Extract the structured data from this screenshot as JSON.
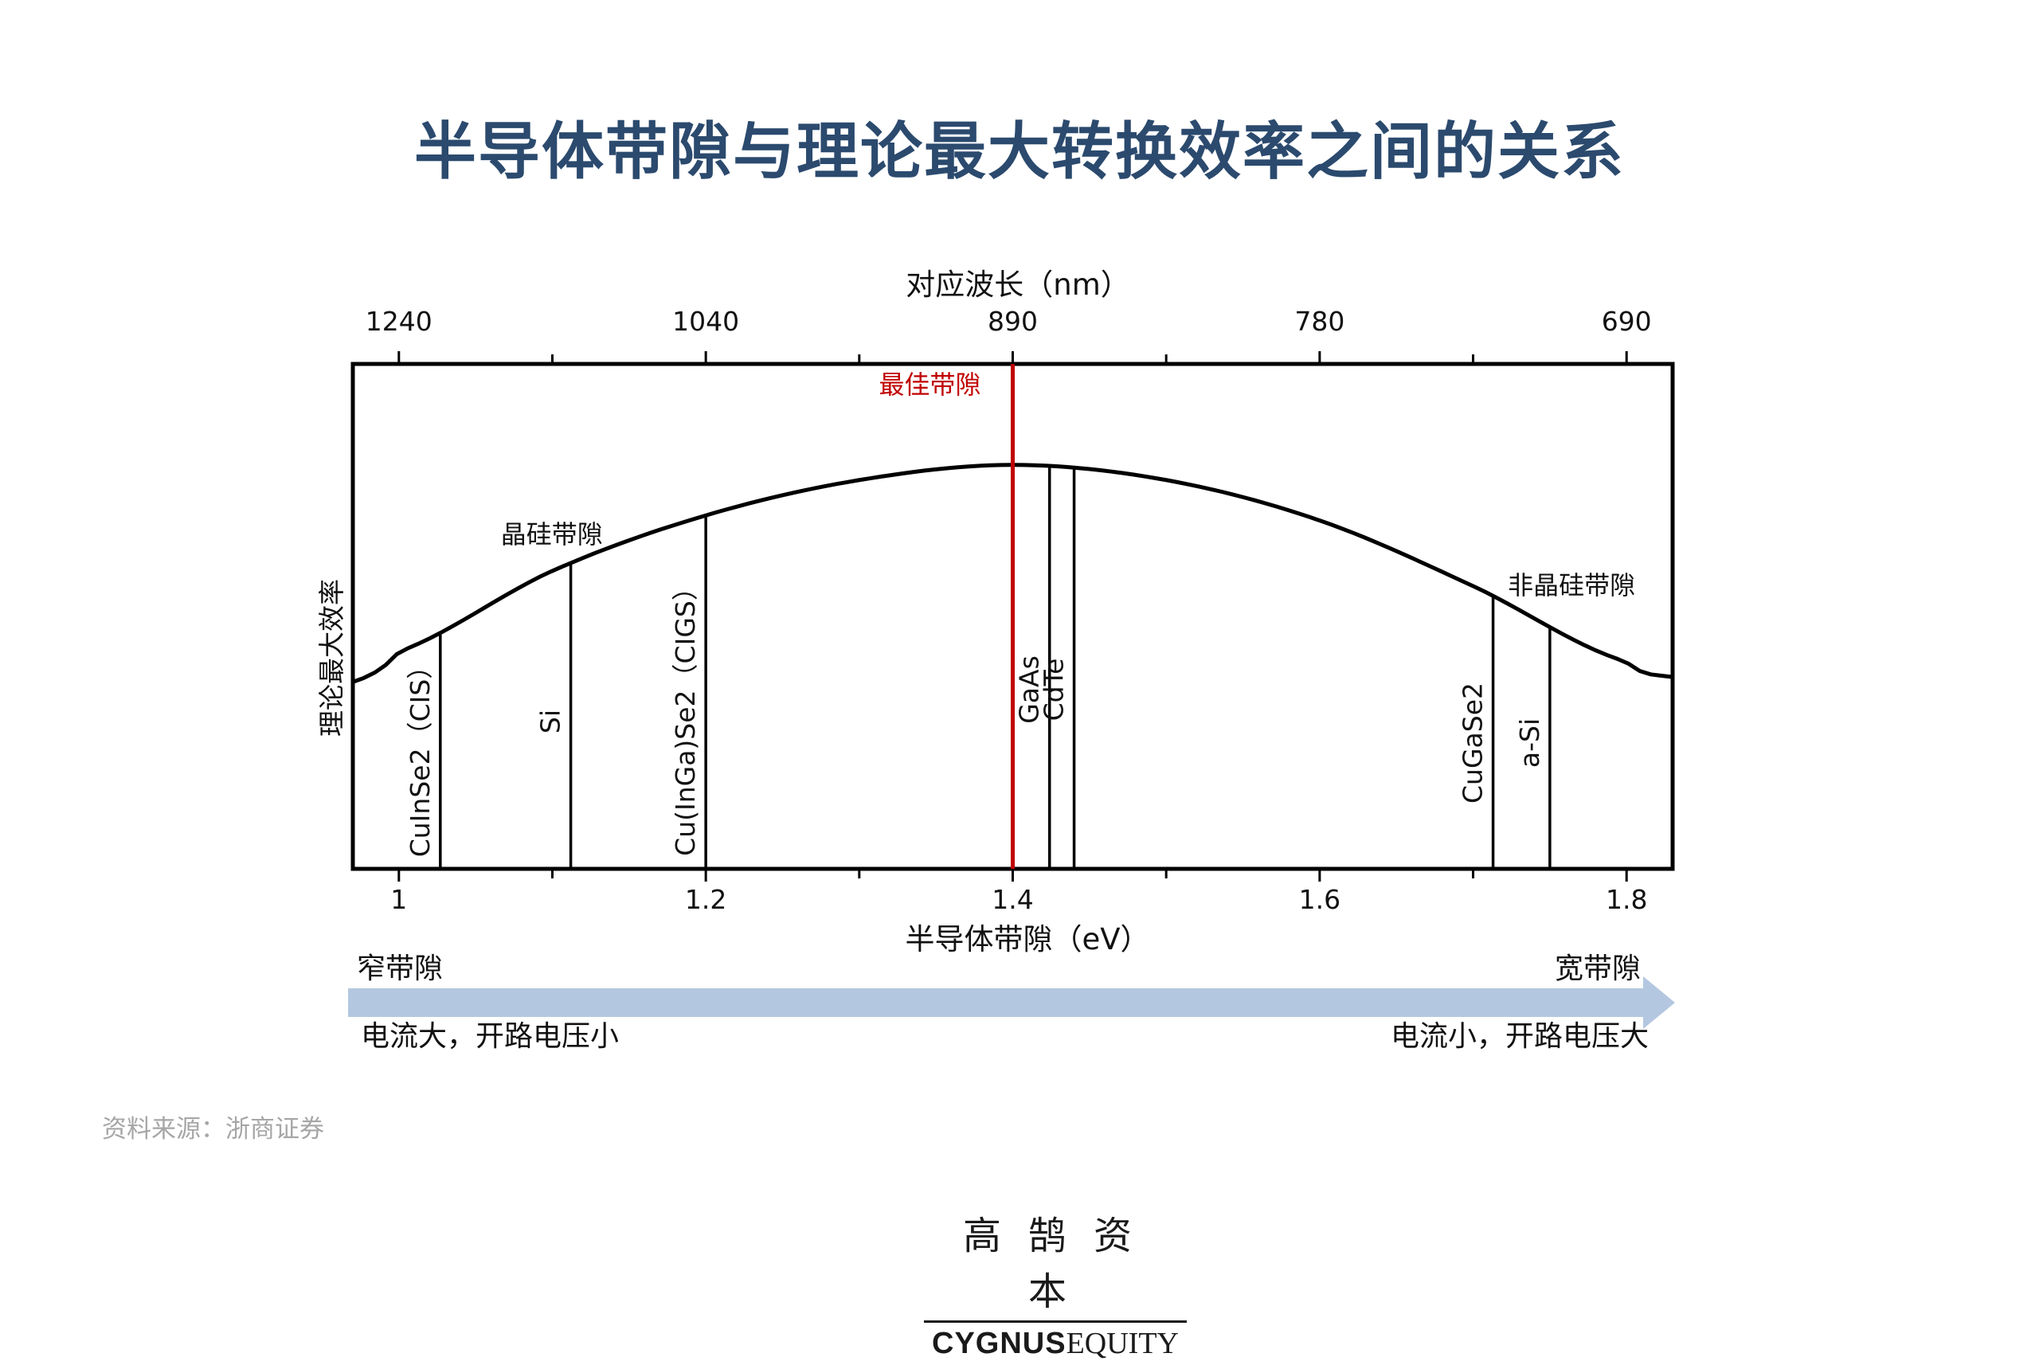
{
  "title": "半导体带隙与理论最大转换效率之间的关系",
  "chart_data": {
    "type": "line",
    "top_axis": {
      "label": "对应波长（nm）",
      "ticks": [
        "1240",
        "1040",
        "890",
        "780",
        "690"
      ]
    },
    "xlabel": "半导体带隙（eV）",
    "ylabel": "理论最大效率",
    "xlim": [
      0.97,
      1.83
    ],
    "xticks": [
      "1",
      "1.2",
      "1.4",
      "1.6",
      "1.8"
    ],
    "curve": {
      "x": [
        0.97,
        1.0,
        1.1,
        1.2,
        1.3,
        1.4,
        1.5,
        1.6,
        1.7,
        1.8,
        1.83
      ],
      "y": [
        0.37,
        0.43,
        0.59,
        0.7,
        0.77,
        0.8,
        0.77,
        0.69,
        0.56,
        0.41,
        0.38
      ]
    },
    "optimal": {
      "x": 1.4,
      "label": "最佳带隙",
      "color": "#c00000"
    },
    "materials": [
      {
        "name": "CuInSe2（CIS）",
        "x": 1.027
      },
      {
        "name": "Si",
        "x": 1.112
      },
      {
        "name": "Cu(InGa)Se2（CIGS）",
        "x": 1.2
      },
      {
        "name": "GaAs",
        "x": 1.424
      },
      {
        "name": "CdTe",
        "x": 1.44
      },
      {
        "name": "CuGaSe2",
        "x": 1.713
      },
      {
        "name": "a-Si",
        "x": 1.75
      }
    ],
    "annotations": [
      {
        "text": "晶硅带隙",
        "x": 1.11
      },
      {
        "text": "非晶硅带隙",
        "x": 1.76
      }
    ]
  },
  "arrow": {
    "left_label": "窄带隙",
    "right_label": "宽带隙",
    "left_note": "电流大，开路电压小",
    "right_note": "电流小，开路电压大",
    "color": "#b4c7e0"
  },
  "source": "资料来源：浙商证券",
  "logo": {
    "cn": "高鹄资本",
    "en_bold": "CYGNUS",
    "en_rest": "EQUITY"
  }
}
